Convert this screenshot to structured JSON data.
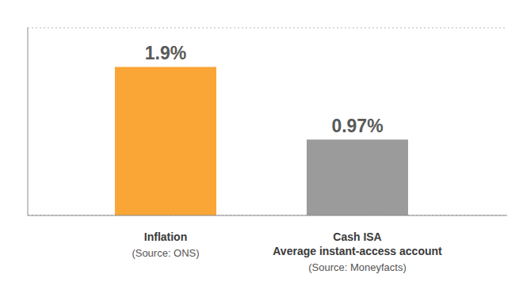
{
  "chart_data": {
    "type": "bar",
    "categories": [
      "Inflation",
      "Cash ISA\nAverage instant-access account"
    ],
    "category_notes": [
      "(Source: ONS)",
      "(Source: Moneyfacts)"
    ],
    "values": [
      1.9,
      0.97
    ],
    "value_labels": [
      "1.9%",
      "0.97%"
    ],
    "colors": [
      "#f9a636",
      "#9b9b9b"
    ],
    "ylim": [
      0,
      2.4
    ],
    "yticks": [
      0,
      1,
      2
    ],
    "grid": true,
    "data_labels": true,
    "tick_labels": "x"
  }
}
